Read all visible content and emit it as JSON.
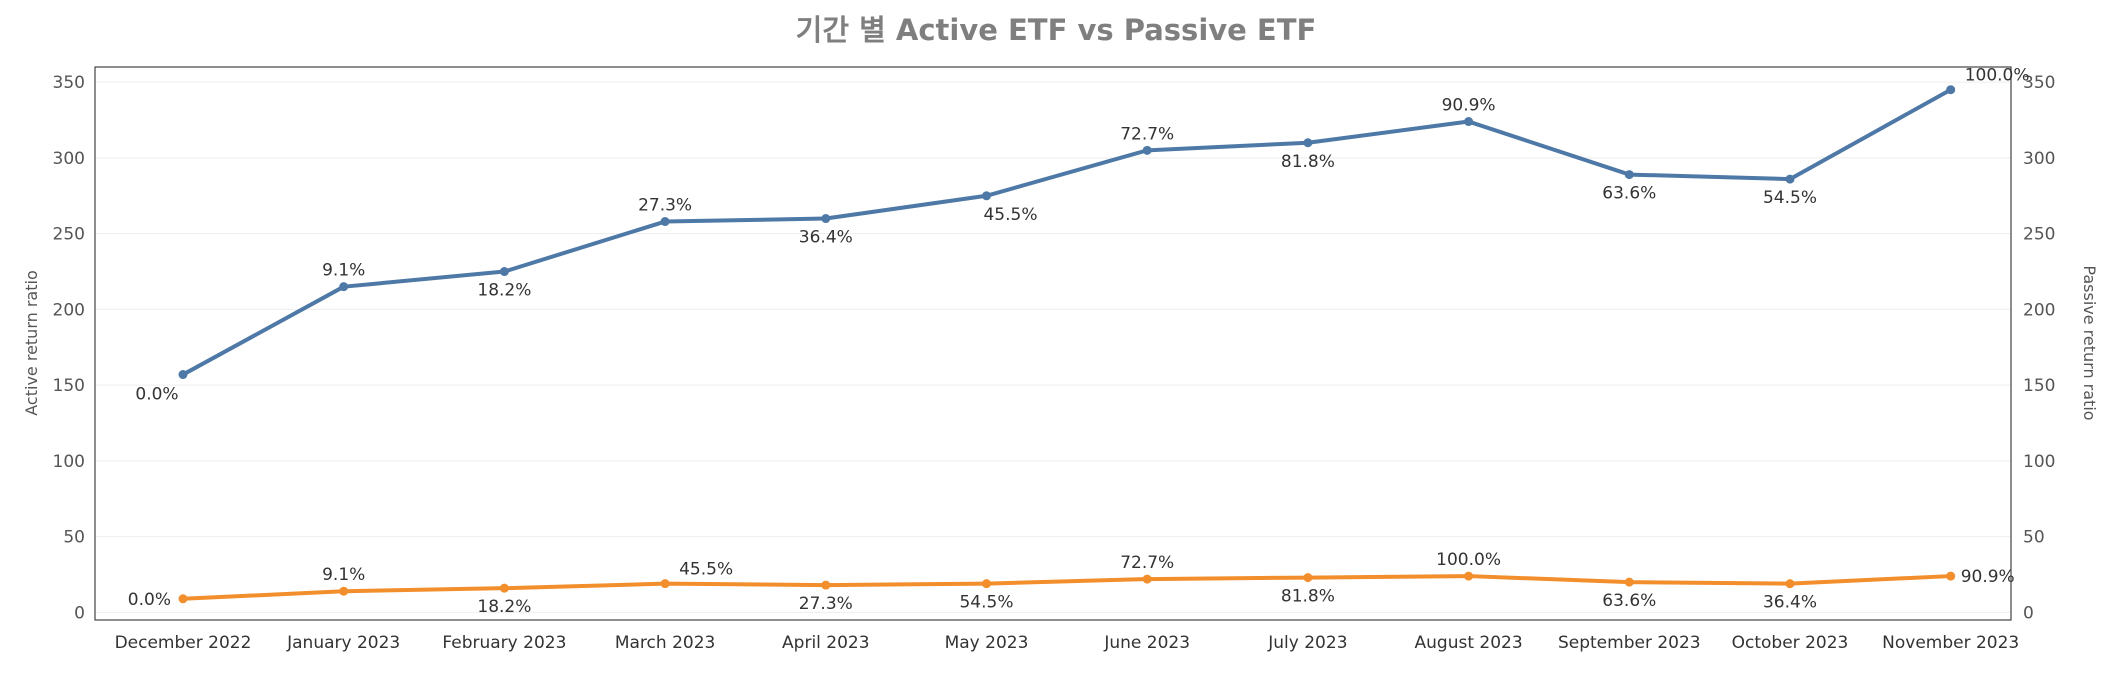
{
  "chart_data": {
    "type": "line",
    "title": "기간 별 Active ETF vs Passive ETF",
    "ylabel": "Active return ratio",
    "y2label": "Passive return ratio",
    "ylim": [
      -5,
      360
    ],
    "yticks": [
      0,
      50,
      100,
      150,
      200,
      250,
      300,
      350
    ],
    "grid": true,
    "categories": [
      "December 2022",
      "January 2023",
      "February 2023",
      "March 2023",
      "April 2023",
      "May 2023",
      "June 2023",
      "July 2023",
      "August 2023",
      "September 2023",
      "October 2023",
      "November 2023"
    ],
    "series": [
      {
        "color": "#4e79a7",
        "values": [
          157,
          215,
          225,
          258,
          260,
          275,
          305,
          310,
          324,
          289,
          286,
          345
        ],
        "labels": [
          "0.0%",
          "9.1%",
          "18.2%",
          "27.3%",
          "36.4%",
          "45.5%",
          "72.7%",
          "81.8%",
          "90.9%",
          "63.6%",
          "54.5%",
          "100.0%"
        ],
        "label_pos": [
          "below-left",
          "above",
          "below",
          "above",
          "below",
          "below-right",
          "above",
          "below",
          "above",
          "below",
          "below",
          "above-right"
        ]
      },
      {
        "color": "#f28e2b",
        "values": [
          9,
          14,
          16,
          19,
          18,
          19,
          22,
          23,
          24,
          20,
          19,
          24
        ],
        "labels": [
          "0.0%",
          "9.1%",
          "18.2%",
          "45.5%",
          "27.3%",
          "54.5%",
          "72.7%",
          "81.8%",
          "100.0%",
          "63.6%",
          "36.4%",
          "90.9%"
        ],
        "label_pos": [
          "left",
          "above",
          "below",
          "above-right",
          "below",
          "below",
          "above",
          "below",
          "above",
          "below",
          "below",
          "right"
        ]
      }
    ]
  }
}
